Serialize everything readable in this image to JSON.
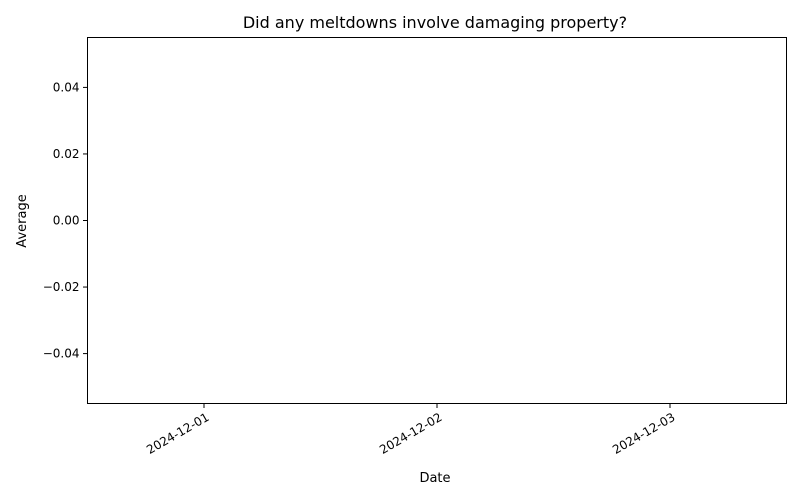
{
  "chart_data": {
    "type": "line",
    "title": "Did any meltdowns involve damaging property?",
    "xlabel": "Date",
    "ylabel": "Average",
    "x_ticks": [
      "2024-12-01",
      "2024-12-02",
      "2024-12-03"
    ],
    "xlim": [
      "2024-11-30T12:00",
      "2024-12-03T12:00"
    ],
    "y_ticks": [
      {
        "value": 0.04,
        "label": "0.04"
      },
      {
        "value": 0.02,
        "label": "0.02"
      },
      {
        "value": 0.0,
        "label": "0.00"
      },
      {
        "value": -0.02,
        "label": "−0.02"
      },
      {
        "value": -0.04,
        "label": "−0.04"
      }
    ],
    "ylim": [
      -0.055,
      0.055
    ],
    "grid": false,
    "series": [
      {
        "x": [],
        "values": [],
        "color": "#1f77b4"
      }
    ]
  }
}
